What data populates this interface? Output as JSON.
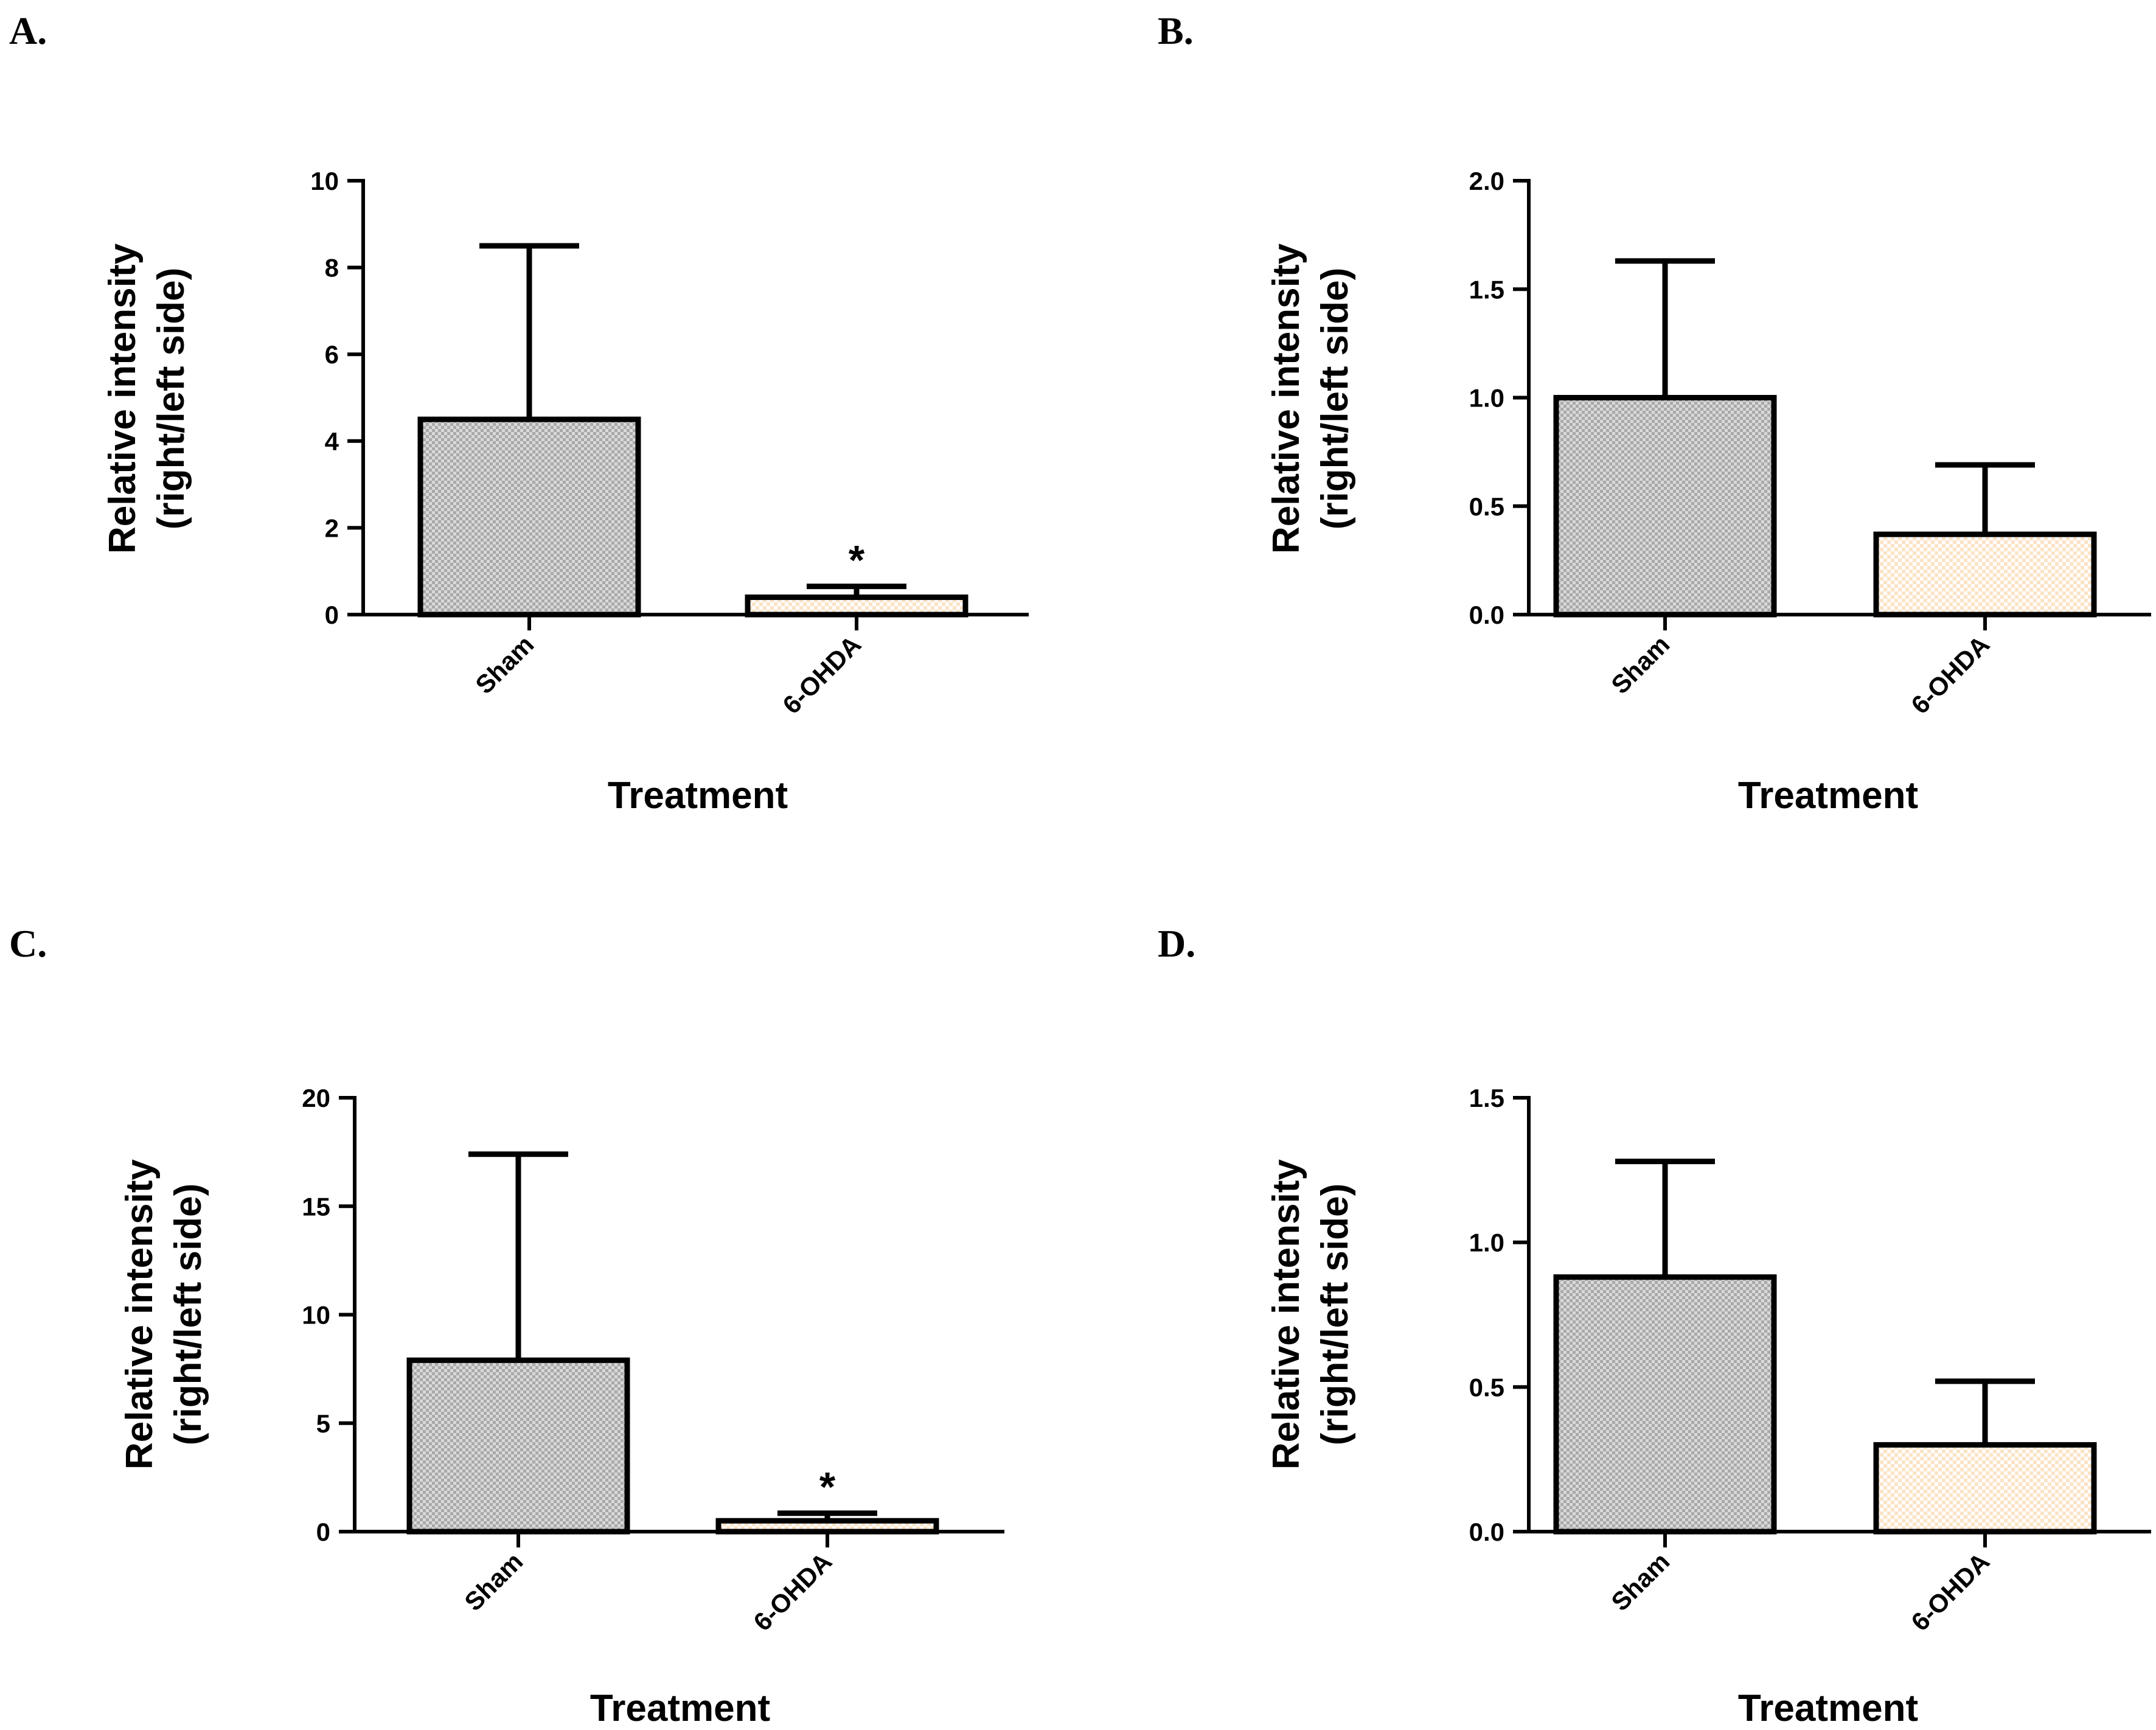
{
  "chart_data": [
    {
      "type": "bar",
      "panel_label": "A.",
      "categories": [
        "Sham",
        "6-OHDA"
      ],
      "values": [
        4.5,
        0.4
      ],
      "errors": [
        4.0,
        0.25
      ],
      "significance": [
        "",
        "*"
      ],
      "ylabel_line1": "Relative intensity",
      "ylabel_line2": "(right/left side)",
      "xlabel": "Treatment",
      "ylim": [
        0,
        10
      ],
      "yticks": [
        0,
        2,
        4,
        6,
        8,
        10
      ],
      "ytick_labels": [
        "0",
        "2",
        "4",
        "6",
        "8",
        "10"
      ]
    },
    {
      "type": "bar",
      "panel_label": "B.",
      "categories": [
        "Sham",
        "6-OHDA"
      ],
      "values": [
        1.0,
        0.37
      ],
      "errors": [
        0.63,
        0.32
      ],
      "significance": [
        "",
        ""
      ],
      "ylabel_line1": "Relative intensity",
      "ylabel_line2": "(right/left side)",
      "xlabel": "Treatment",
      "ylim": [
        0,
        2.0
      ],
      "yticks": [
        0,
        0.5,
        1.0,
        1.5,
        2.0
      ],
      "ytick_labels": [
        "0.0",
        "0.5",
        "1.0",
        "1.5",
        "2.0"
      ]
    },
    {
      "type": "bar",
      "panel_label": "C.",
      "categories": [
        "Sham",
        "6-OHDA"
      ],
      "values": [
        7.9,
        0.5
      ],
      "errors": [
        9.5,
        0.35
      ],
      "significance": [
        "",
        "*"
      ],
      "ylabel_line1": "Relative intensity",
      "ylabel_line2": "(right/left side)",
      "xlabel": "Treatment",
      "ylim": [
        0,
        20
      ],
      "yticks": [
        0,
        5,
        10,
        15,
        20
      ],
      "ytick_labels": [
        "0",
        "5",
        "10",
        "15",
        "20"
      ]
    },
    {
      "type": "bar",
      "panel_label": "D.",
      "categories": [
        "Sham",
        "6-OHDA"
      ],
      "values": [
        0.88,
        0.3
      ],
      "errors": [
        0.4,
        0.22
      ],
      "significance": [
        "",
        ""
      ],
      "ylabel_line1": "Relative intensity",
      "ylabel_line2": "(right/left side)",
      "xlabel": "Treatment",
      "ylim": [
        0,
        1.5
      ],
      "yticks": [
        0,
        0.5,
        1.0,
        1.5
      ],
      "ytick_labels": [
        "0.0",
        "0.5",
        "1.0",
        "1.5"
      ]
    }
  ],
  "colors": {
    "sham_fill": "#a9a9a9",
    "sham_pattern_dot": "#d9d9d9",
    "ohda_fill": "#fbe3c6",
    "ohda_pattern_dot": "#ffffff",
    "stroke": "#000000"
  }
}
